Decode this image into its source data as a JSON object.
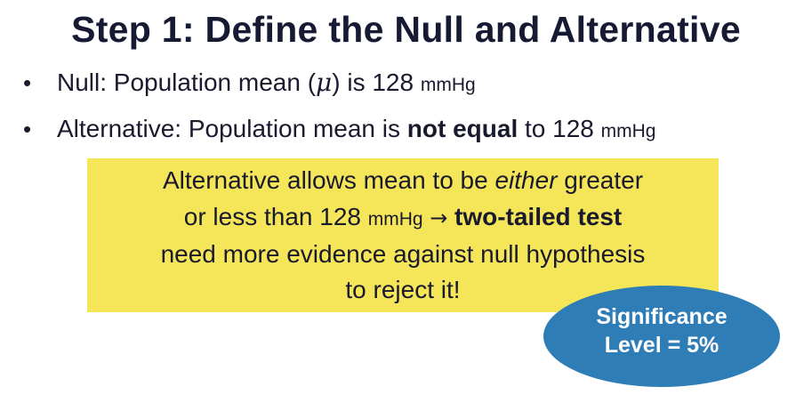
{
  "slide": {
    "title": "Step 1: Define the Null and Alternative",
    "bullets": [
      {
        "marker": "•",
        "prefix": "Null: Population mean (",
        "symbol": "μ",
        "middle": ") is 128 ",
        "unit": "mmHg"
      },
      {
        "marker": "•",
        "prefix": "Alternative: Population mean is ",
        "emphasis": "not equal",
        "middle": " to 128 ",
        "unit": "mmHg"
      }
    ],
    "callout": {
      "line1_start": "Alternative allows mean to be ",
      "line1_italic": "either",
      "line1_end": " greater",
      "line2_start": "or less than 128 ",
      "line2_unit": "mmHg",
      "line2_arrow": " → ",
      "line2_bold": "two-tailed test",
      "line3": "need more evidence against null hypothesis",
      "line4": "to reject it!",
      "background_color": "#f5e659"
    },
    "badge": {
      "line1": "Significance",
      "line2": "Level = 5%",
      "color": "#2f7db7"
    }
  }
}
